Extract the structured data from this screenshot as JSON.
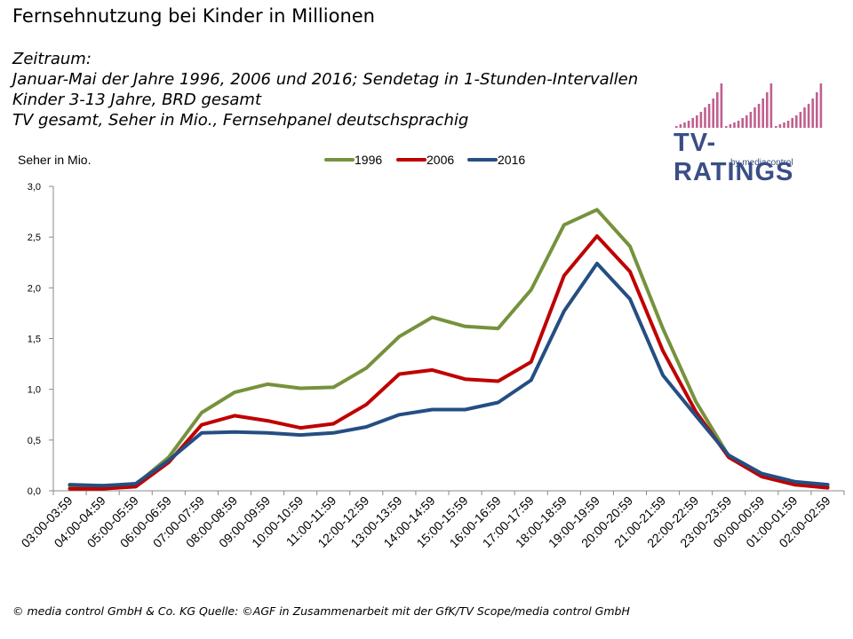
{
  "title": "Fernsehnutzung bei Kinder in Millionen",
  "subtitle_lines": [
    "Zeitraum:",
    "Januar-Mai der Jahre 1996, 2006 und 2016; Sendetag in 1-Stunden-Intervallen",
    "Kinder 3-13 Jahre, BRD gesamt",
    "TV gesamt, Seher in Mio., Fernsehpanel deutschsprachig"
  ],
  "logo": {
    "text": "TV-RATINGS",
    "sub": "by mediacontrol"
  },
  "footer": "© media control GmbH & Co. KG Quelle: ©AGF in Zusammenarbeit mit der GfK/TV Scope/media control GmbH",
  "colors": {
    "s1996": "#76923c",
    "s2006": "#c00000",
    "s2016": "#254e82",
    "logo_bars": "#c0608f",
    "logo_text": "#3a4e86"
  },
  "chart_data": {
    "type": "line",
    "ylabel": "Seher in Mio.",
    "xlabel": "",
    "ylim": [
      0,
      3
    ],
    "yticks": [
      "0,0",
      "0,5",
      "1,0",
      "1,5",
      "2,0",
      "2,5",
      "3,0"
    ],
    "grid": false,
    "legend_position": "top-center",
    "categories": [
      "03:00-03:59",
      "04:00-04:59",
      "05:00-05:59",
      "06:00-06:59",
      "07:00-07:59",
      "08:00-08:59",
      "09:00-09:59",
      "10:00-10:59",
      "11:00-11:59",
      "12:00-12:59",
      "13:00-13:59",
      "14:00-14:59",
      "15:00-15:59",
      "16:00-16:59",
      "17:00-17:59",
      "18:00-18:59",
      "19:00-19:59",
      "20:00-20:59",
      "21:00-21:59",
      "22:00-22:59",
      "23:00-23:59",
      "00:00-00:59",
      "01:00-01:59",
      "02:00-02:59"
    ],
    "series": [
      {
        "name": "1996",
        "color": "#76923c",
        "values": [
          0.05,
          0.05,
          0.06,
          0.33,
          0.77,
          0.97,
          1.05,
          1.01,
          1.02,
          1.21,
          1.52,
          1.71,
          1.62,
          1.6,
          1.98,
          2.62,
          2.77,
          2.41,
          1.6,
          0.88,
          0.34,
          0.16,
          0.06,
          0.04
        ]
      },
      {
        "name": "2006",
        "color": "#c00000",
        "values": [
          0.02,
          0.02,
          0.04,
          0.28,
          0.65,
          0.74,
          0.69,
          0.62,
          0.66,
          0.85,
          1.15,
          1.19,
          1.1,
          1.08,
          1.27,
          2.12,
          2.51,
          2.16,
          1.38,
          0.78,
          0.33,
          0.14,
          0.06,
          0.03
        ]
      },
      {
        "name": "2016",
        "color": "#254e82",
        "values": [
          0.06,
          0.05,
          0.07,
          0.3,
          0.57,
          0.58,
          0.57,
          0.55,
          0.57,
          0.63,
          0.75,
          0.8,
          0.8,
          0.87,
          1.09,
          1.77,
          2.24,
          1.89,
          1.14,
          0.74,
          0.35,
          0.17,
          0.09,
          0.06
        ]
      }
    ]
  }
}
